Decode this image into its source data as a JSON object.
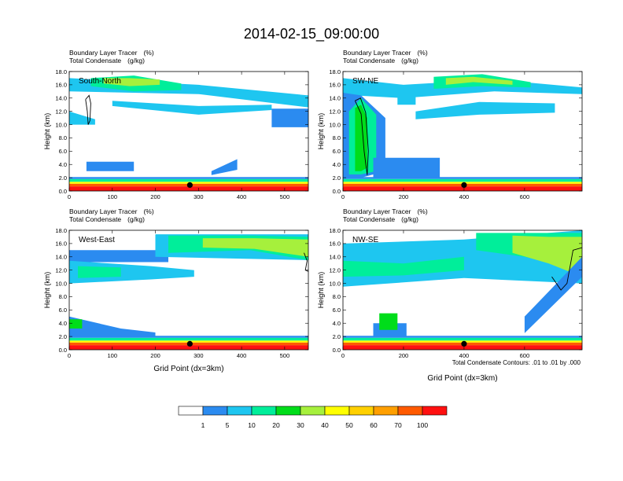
{
  "page_title": "2014-02-15_09:00:00",
  "panel_header": {
    "line1_label": "Boundary Layer Tracer",
    "line1_unit": "(%)",
    "line2_label": "Total Condensate",
    "line2_unit": "(g/kg)"
  },
  "colorbar": {
    "labels": [
      "1",
      "5",
      "10",
      "20",
      "30",
      "40",
      "50",
      "60",
      "70",
      "100"
    ],
    "colors": [
      "#ffffff",
      "#2b8bf0",
      "#1ec6f0",
      "#00ee9a",
      "#00dd1a",
      "#a6f03c",
      "#ffff00",
      "#ffd000",
      "#ff9f00",
      "#ff5a00",
      "#ff1010"
    ]
  },
  "contour_info": "Total Condensate Contours: .01 to .01 by .000",
  "chart_data": [
    {
      "type": "heatmap",
      "panel_label": "South-North",
      "ylabel": "Height (km)",
      "xlabel": "",
      "x_ticks": [
        "0",
        "100",
        "200",
        "300",
        "400",
        "500"
      ],
      "y_ticks": [
        "0.0",
        "2.0",
        "4.0",
        "6.0",
        "8.0",
        "10.0",
        "12.0",
        "14.0",
        "16.0",
        "18.0"
      ],
      "xlim": [
        0,
        555
      ],
      "ylim": [
        0,
        18
      ],
      "marker_x": 280,
      "layers": [
        {
          "xs": [
            0,
            555
          ],
          "bot": [
            0,
            0
          ],
          "top": [
            0.7,
            0.7
          ],
          "level": 10
        },
        {
          "xs": [
            0,
            555
          ],
          "bot": [
            0.7,
            0.7
          ],
          "top": [
            1.1,
            1.1
          ],
          "level": 9
        },
        {
          "xs": [
            0,
            555
          ],
          "bot": [
            1.1,
            1.1
          ],
          "top": [
            1.4,
            1.4
          ],
          "level": 6
        },
        {
          "xs": [
            0,
            555
          ],
          "bot": [
            1.4,
            1.4
          ],
          "top": [
            1.8,
            1.8
          ],
          "level": 3
        },
        {
          "xs": [
            0,
            555
          ],
          "bot": [
            1.8,
            1.8
          ],
          "top": [
            2.1,
            2.1
          ],
          "level": 1
        },
        {
          "xs": [
            0,
            300,
            555
          ],
          "bot": [
            15.0,
            14.6,
            12.6
          ],
          "top": [
            17.0,
            16.0,
            14.4
          ],
          "level": 2
        },
        {
          "xs": [
            50,
            150,
            260
          ],
          "bot": [
            15.8,
            15.0,
            15.2
          ],
          "top": [
            17.0,
            17.4,
            16.2
          ],
          "level": 3
        },
        {
          "xs": [
            80,
            140,
            210
          ],
          "bot": [
            16.2,
            15.8,
            16.0
          ],
          "top": [
            17.0,
            17.0,
            16.8
          ],
          "level": 5
        },
        {
          "xs": [
            100,
            300,
            470
          ],
          "bot": [
            12.8,
            11.5,
            12.2
          ],
          "top": [
            13.6,
            12.8,
            13.0
          ],
          "level": 2
        },
        {
          "xs": [
            0,
            60
          ],
          "bot": [
            10.0,
            10.0
          ],
          "top": [
            12.0,
            10.8
          ],
          "level": 2
        },
        {
          "xs": [
            40,
            150
          ],
          "bot": [
            3.0,
            3.0
          ],
          "top": [
            4.4,
            4.4
          ],
          "level": 1
        },
        {
          "xs": [
            330,
            390
          ],
          "bot": [
            2.4,
            3.2
          ],
          "top": [
            3.0,
            4.8
          ],
          "level": 1
        },
        {
          "xs": [
            470,
            555
          ],
          "bot": [
            9.6,
            9.6
          ],
          "top": [
            12.4,
            12.4
          ],
          "level": 1
        }
      ],
      "contours": [
        [
          [
            38,
            13.8
          ],
          [
            42,
            12.0
          ],
          [
            44,
            10.0
          ],
          [
            48,
            10.6
          ],
          [
            50,
            13.2
          ],
          [
            46,
            14.4
          ],
          [
            38,
            13.8
          ]
        ]
      ]
    },
    {
      "type": "heatmap",
      "panel_label": "SW-NE",
      "ylabel": "Height (km)",
      "xlabel": "",
      "x_ticks": [
        "0",
        "200",
        "400",
        "600"
      ],
      "y_ticks": [
        "0.0",
        "2.0",
        "4.0",
        "6.0",
        "8.0",
        "10.0",
        "12.0",
        "14.0",
        "16.0",
        "18.0"
      ],
      "xlim": [
        0,
        790
      ],
      "ylim": [
        0,
        18
      ],
      "marker_x": 400,
      "layers": [
        {
          "xs": [
            0,
            790
          ],
          "bot": [
            0,
            0
          ],
          "top": [
            0.7,
            0.7
          ],
          "level": 10
        },
        {
          "xs": [
            0,
            790
          ],
          "bot": [
            0.7,
            0.7
          ],
          "top": [
            1.1,
            1.1
          ],
          "level": 9
        },
        {
          "xs": [
            0,
            790
          ],
          "bot": [
            1.1,
            1.1
          ],
          "top": [
            1.4,
            1.4
          ],
          "level": 6
        },
        {
          "xs": [
            0,
            790
          ],
          "bot": [
            1.4,
            1.4
          ],
          "top": [
            1.8,
            1.8
          ],
          "level": 3
        },
        {
          "xs": [
            0,
            790
          ],
          "bot": [
            1.8,
            1.8
          ],
          "top": [
            2.1,
            2.1
          ],
          "level": 1
        },
        {
          "xs": [
            0,
            200,
            500,
            790
          ],
          "bot": [
            14.5,
            14.0,
            15.0,
            14.6
          ],
          "top": [
            17.0,
            16.0,
            16.8,
            15.6
          ],
          "level": 2
        },
        {
          "xs": [
            300,
            460,
            620
          ],
          "bot": [
            15.4,
            15.8,
            15.6
          ],
          "top": [
            17.2,
            17.6,
            16.4
          ],
          "level": 3
        },
        {
          "xs": [
            340,
            430,
            560
          ],
          "bot": [
            16.0,
            16.4,
            16.0
          ],
          "top": [
            17.0,
            17.2,
            16.6
          ],
          "level": 5
        },
        {
          "xs": [
            240,
            450,
            700
          ],
          "bot": [
            10.8,
            11.5,
            11.8
          ],
          "top": [
            12.0,
            13.4,
            13.2
          ],
          "level": 2
        },
        {
          "xs": [
            0,
            60,
            140
          ],
          "bot": [
            2.0,
            2.0,
            3.0
          ],
          "top": [
            14.8,
            14.4,
            11.0
          ],
          "level": 1
        },
        {
          "xs": [
            20,
            60,
            110
          ],
          "bot": [
            2.5,
            2.5,
            3.0
          ],
          "top": [
            12.0,
            14.0,
            11.5
          ],
          "level": 3
        },
        {
          "xs": [
            40,
            60,
            80
          ],
          "bot": [
            3.0,
            3.0,
            3.5
          ],
          "top": [
            12.5,
            13.0,
            11.0
          ],
          "level": 4
        },
        {
          "xs": [
            100,
            320
          ],
          "bot": [
            2.0,
            2.0
          ],
          "top": [
            5.0,
            5.0
          ],
          "level": 1
        },
        {
          "xs": [
            180,
            240
          ],
          "bot": [
            13.0,
            13.0
          ],
          "top": [
            14.8,
            14.8
          ],
          "level": 2
        }
      ],
      "contours": [
        [
          [
            40,
            13.6
          ],
          [
            60,
            11.6
          ],
          [
            70,
            6.0
          ],
          [
            80,
            2.4
          ],
          [
            84,
            6.0
          ],
          [
            75,
            11.8
          ],
          [
            58,
            14.0
          ],
          [
            40,
            13.6
          ]
        ]
      ]
    },
    {
      "type": "heatmap",
      "panel_label": "West-East",
      "ylabel": "Height (km)",
      "xlabel": "Grid Point (dx=3km)",
      "x_ticks": [
        "0",
        "100",
        "200",
        "300",
        "400",
        "500"
      ],
      "y_ticks": [
        "0.0",
        "2.0",
        "4.0",
        "6.0",
        "8.0",
        "10.0",
        "12.0",
        "14.0",
        "16.0",
        "18.0"
      ],
      "xlim": [
        0,
        555
      ],
      "ylim": [
        0,
        18
      ],
      "marker_x": 280,
      "layers": [
        {
          "xs": [
            0,
            555
          ],
          "bot": [
            0,
            0
          ],
          "top": [
            0.7,
            0.7
          ],
          "level": 10
        },
        {
          "xs": [
            0,
            555
          ],
          "bot": [
            0.7,
            0.7
          ],
          "top": [
            1.1,
            1.1
          ],
          "level": 9
        },
        {
          "xs": [
            0,
            555
          ],
          "bot": [
            1.1,
            1.1
          ],
          "top": [
            1.4,
            1.4
          ],
          "level": 6
        },
        {
          "xs": [
            0,
            555
          ],
          "bot": [
            1.4,
            1.4
          ],
          "top": [
            1.8,
            1.8
          ],
          "level": 3
        },
        {
          "xs": [
            0,
            555
          ],
          "bot": [
            1.8,
            1.8
          ],
          "top": [
            2.1,
            2.1
          ],
          "level": 1
        },
        {
          "xs": [
            0,
            230
          ],
          "bot": [
            13.2,
            13.2
          ],
          "top": [
            15.0,
            15.0
          ],
          "level": 1
        },
        {
          "xs": [
            0,
            190,
            290
          ],
          "bot": [
            10.0,
            10.6,
            11.0
          ],
          "top": [
            13.4,
            12.6,
            12.0
          ],
          "level": 2
        },
        {
          "xs": [
            20,
            120
          ],
          "bot": [
            10.8,
            11.0
          ],
          "top": [
            12.6,
            12.4
          ],
          "level": 3
        },
        {
          "xs": [
            200,
            555
          ],
          "bot": [
            14.0,
            13.5
          ],
          "top": [
            17.4,
            17.4
          ],
          "level": 2
        },
        {
          "xs": [
            230,
            420,
            555
          ],
          "bot": [
            14.6,
            15.0,
            13.5
          ],
          "top": [
            17.2,
            17.2,
            17.0
          ],
          "level": 3
        },
        {
          "xs": [
            310,
            430,
            555
          ],
          "bot": [
            15.4,
            15.2,
            14.0
          ],
          "top": [
            16.8,
            16.8,
            16.6
          ],
          "level": 5
        },
        {
          "xs": [
            0,
            120,
            200
          ],
          "bot": [
            2.0,
            2.0,
            2.0
          ],
          "top": [
            5.0,
            3.2,
            2.6
          ],
          "level": 1
        },
        {
          "xs": [
            0,
            30
          ],
          "bot": [
            3.2,
            3.2
          ],
          "top": [
            4.6,
            4.6
          ],
          "level": 4
        }
      ],
      "contours": [
        [
          [
            545,
            14.6
          ],
          [
            552,
            13.4
          ],
          [
            548,
            12.0
          ],
          [
            555,
            11.8
          ]
        ]
      ]
    },
    {
      "type": "heatmap",
      "panel_label": "NW-SE",
      "ylabel": "Height (km)",
      "xlabel": "Grid Point (dx=3km)",
      "x_ticks": [
        "0",
        "200",
        "400",
        "600"
      ],
      "y_ticks": [
        "0.0",
        "2.0",
        "4.0",
        "6.0",
        "8.0",
        "10.0",
        "12.0",
        "14.0",
        "16.0",
        "18.0"
      ],
      "xlim": [
        0,
        790
      ],
      "ylim": [
        0,
        18
      ],
      "marker_x": 400,
      "layers": [
        {
          "xs": [
            0,
            790
          ],
          "bot": [
            0,
            0
          ],
          "top": [
            0.7,
            0.7
          ],
          "level": 10
        },
        {
          "xs": [
            0,
            790
          ],
          "bot": [
            0.7,
            0.7
          ],
          "top": [
            1.1,
            1.1
          ],
          "level": 9
        },
        {
          "xs": [
            0,
            790
          ],
          "bot": [
            1.1,
            1.1
          ],
          "top": [
            1.4,
            1.4
          ],
          "level": 6
        },
        {
          "xs": [
            0,
            790
          ],
          "bot": [
            1.4,
            1.4
          ],
          "top": [
            1.8,
            1.8
          ],
          "level": 3
        },
        {
          "xs": [
            0,
            790
          ],
          "bot": [
            1.8,
            1.8
          ],
          "top": [
            2.1,
            2.1
          ],
          "level": 1
        },
        {
          "xs": [
            0,
            400,
            790
          ],
          "bot": [
            9.5,
            10.8,
            10.0
          ],
          "top": [
            16.0,
            16.6,
            18.0
          ],
          "level": 2
        },
        {
          "xs": [
            0,
            200,
            400
          ],
          "bot": [
            11.0,
            11.2,
            12.0
          ],
          "top": [
            13.4,
            13.0,
            14.0
          ],
          "level": 3
        },
        {
          "xs": [
            440,
            600,
            790
          ],
          "bot": [
            15.0,
            14.0,
            12.0
          ],
          "top": [
            17.6,
            17.6,
            17.6
          ],
          "level": 3
        },
        {
          "xs": [
            560,
            680,
            790
          ],
          "bot": [
            14.6,
            13.0,
            11.0
          ],
          "top": [
            17.2,
            17.0,
            17.0
          ],
          "level": 5
        },
        {
          "xs": [
            600,
            790
          ],
          "bot": [
            2.5,
            11.0
          ],
          "top": [
            5.0,
            14.0
          ],
          "level": 1
        },
        {
          "xs": [
            100,
            210
          ],
          "bot": [
            2.0,
            2.0
          ],
          "top": [
            4.0,
            4.0
          ],
          "level": 1
        },
        {
          "xs": [
            120,
            180
          ],
          "bot": [
            3.0,
            3.0
          ],
          "top": [
            5.5,
            5.5
          ],
          "level": 4
        }
      ],
      "contours": [
        [
          [
            690,
            11.0
          ],
          [
            720,
            9.0
          ],
          [
            740,
            10.0
          ],
          [
            760,
            15.0
          ],
          [
            790,
            15.4
          ]
        ]
      ]
    }
  ]
}
